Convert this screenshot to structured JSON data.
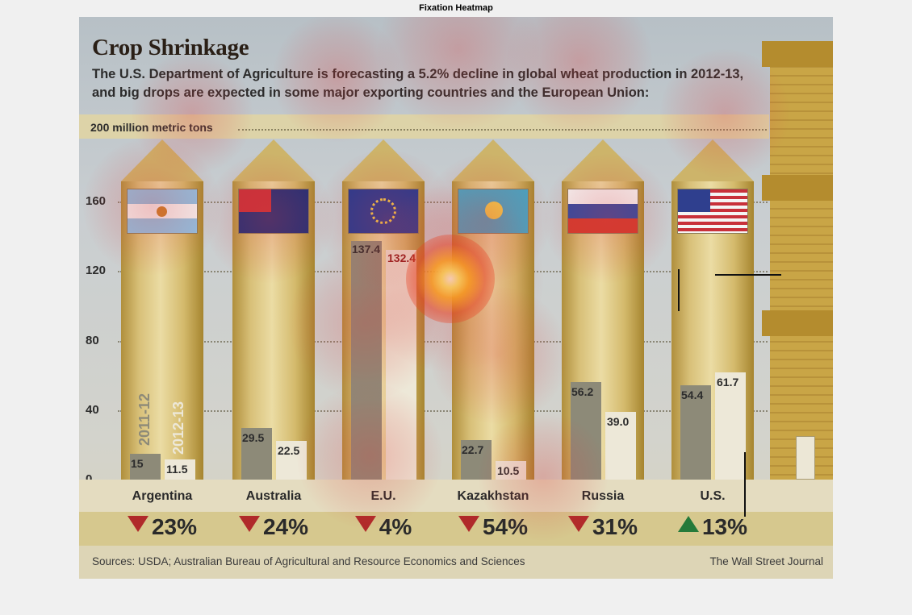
{
  "figure": {
    "title": "Fixation Heatmap"
  },
  "chart_data": {
    "type": "bar",
    "title": "Crop Shrinkage",
    "subtitle": "The U.S. Department of Agriculture is forecasting a 5.2% decline in global wheat production in 2012-13, and big drops are expected in some major exporting countries and the European Union:",
    "unit_label": "200 million metric tons",
    "categories": [
      "Argentina",
      "Australia",
      "E.U.",
      "Kazakhstan",
      "Russia",
      "U.S."
    ],
    "series": [
      {
        "name": "2011-12",
        "values": [
          15,
          29.5,
          137.4,
          22.7,
          56.2,
          54.4
        ]
      },
      {
        "name": "2012-13",
        "values": [
          11.5,
          22.5,
          132.4,
          10.5,
          39.0,
          61.7
        ]
      }
    ],
    "value_labels": {
      "2011-12": [
        "15",
        "29.5",
        "137.4",
        "22.7",
        "56.2",
        "54.4"
      ],
      "2012-13": [
        "11.5",
        "22.5",
        "132.4",
        "10.5",
        "39.0",
        "61.7"
      ]
    },
    "changes": [
      {
        "direction": "down",
        "text": "23%"
      },
      {
        "direction": "down",
        "text": "24%"
      },
      {
        "direction": "down",
        "text": "4%"
      },
      {
        "direction": "down",
        "text": "54%"
      },
      {
        "direction": "down",
        "text": "31%"
      },
      {
        "direction": "up",
        "text": "13%"
      }
    ],
    "yticks": [
      "0",
      "40",
      "80",
      "120",
      "160"
    ],
    "ylim": [
      0,
      200
    ],
    "xlabel": "",
    "ylabel": "",
    "grid": true,
    "legend": "labels written vertically inside the Argentina silo",
    "sources": "Sources: USDA; Australian Bureau of Agricultural and Resource Economics and Sciences",
    "credit": "The Wall Street Journal"
  },
  "colors": {
    "bar_2011": "#8d8a78",
    "bar_2012": "#ede8d8",
    "silo": "#d8c078",
    "decline_arrow": "#b02a2a",
    "increase_arrow": "#257a3a",
    "heat_hotspot": "#ffe040"
  },
  "icons": {
    "flags": [
      "argentina-flag-icon",
      "australia-flag-icon",
      "eu-flag-icon",
      "kazakhstan-flag-icon",
      "russia-flag-icon",
      "us-flag-icon"
    ]
  }
}
